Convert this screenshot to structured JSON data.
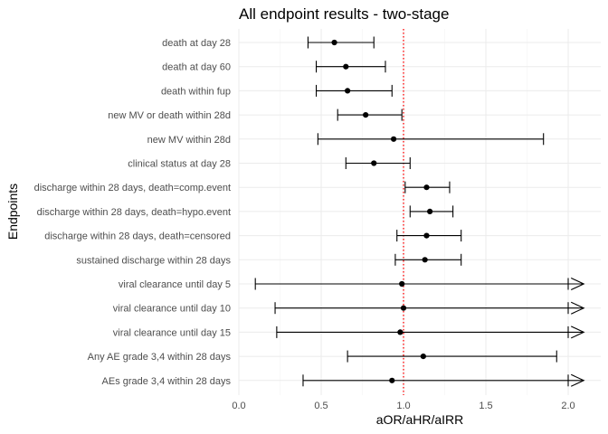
{
  "chart_data": {
    "type": "forest",
    "title": "All endpoint results - two-stage",
    "xlabel": "aOR/aHR/aIRR",
    "ylabel": "Endpoints",
    "xlim": [
      0.0,
      2.1
    ],
    "xticks": [
      "0.0",
      "0.5",
      "1.0",
      "1.5",
      "2.0"
    ],
    "xtick_values": [
      0.0,
      0.5,
      1.0,
      1.5,
      2.0
    ],
    "reference_line": {
      "x": 1.0,
      "color": "#ff0000",
      "style": "dotted"
    },
    "grid": true,
    "point_color": "#000000",
    "endpoints": [
      {
        "label": "death at day 28",
        "estimate": 0.58,
        "lower": 0.42,
        "upper": 0.82,
        "arrow": false
      },
      {
        "label": "death at day 60",
        "estimate": 0.65,
        "lower": 0.47,
        "upper": 0.89,
        "arrow": false
      },
      {
        "label": "death within fup",
        "estimate": 0.66,
        "lower": 0.47,
        "upper": 0.93,
        "arrow": false
      },
      {
        "label": "new MV or death within 28d",
        "estimate": 0.77,
        "lower": 0.6,
        "upper": 0.99,
        "arrow": false
      },
      {
        "label": "new MV within 28d",
        "estimate": 0.94,
        "lower": 0.48,
        "upper": 1.85,
        "arrow": false
      },
      {
        "label": "clinical status at day 28",
        "estimate": 0.82,
        "lower": 0.65,
        "upper": 1.04,
        "arrow": false
      },
      {
        "label": "discharge within 28 days, death=comp.event",
        "estimate": 1.14,
        "lower": 1.01,
        "upper": 1.28,
        "arrow": false
      },
      {
        "label": "discharge within 28 days, death=hypo.event",
        "estimate": 1.16,
        "lower": 1.04,
        "upper": 1.3,
        "arrow": false
      },
      {
        "label": "discharge within 28 days, death=censored",
        "estimate": 1.14,
        "lower": 0.96,
        "upper": 1.35,
        "arrow": false
      },
      {
        "label": "sustained discharge within 28 days",
        "estimate": 1.13,
        "lower": 0.95,
        "upper": 1.35,
        "arrow": false
      },
      {
        "label": "viral clearance until day 5",
        "estimate": 0.99,
        "lower": 0.1,
        "upper": 2.0,
        "arrow": true
      },
      {
        "label": "viral clearance until day 10",
        "estimate": 1.0,
        "lower": 0.22,
        "upper": 2.0,
        "arrow": true
      },
      {
        "label": "viral clearance until day 15",
        "estimate": 0.98,
        "lower": 0.23,
        "upper": 2.0,
        "arrow": true
      },
      {
        "label": "Any AE grade 3,4 within 28 days",
        "estimate": 1.12,
        "lower": 0.66,
        "upper": 1.93,
        "arrow": false
      },
      {
        "label": "AEs grade 3,4 within 28 days",
        "estimate": 0.93,
        "lower": 0.39,
        "upper": 2.0,
        "arrow": true
      }
    ]
  }
}
